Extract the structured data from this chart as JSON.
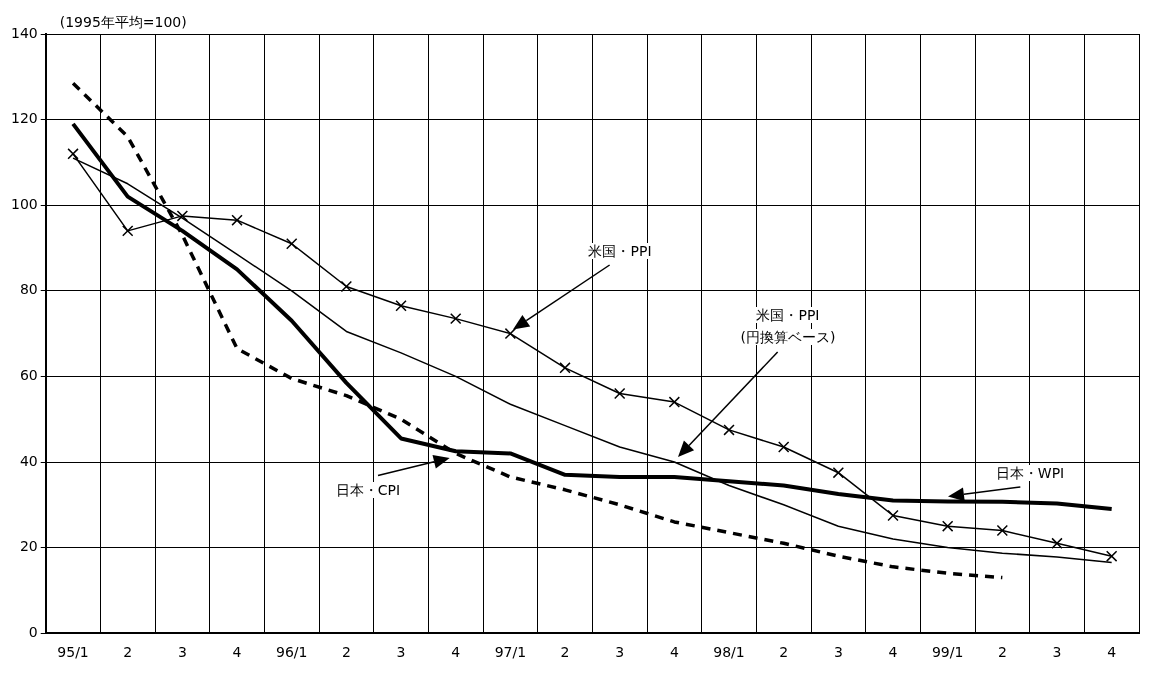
{
  "chart_data": {
    "type": "line",
    "ylabel": "(1995年平均=100)",
    "categories": [
      "95/1",
      "2",
      "3",
      "4",
      "96/1",
      "2",
      "3",
      "4",
      "97/1",
      "2",
      "3",
      "4",
      "98/1",
      "2",
      "3",
      "4",
      "99/1",
      "2",
      "3",
      "4"
    ],
    "series": [
      {
        "color": "#000000",
        "marker": "cross",
        "line_style": "solid",
        "values": [
          112,
          94,
          97.5,
          96.5,
          91,
          81,
          76.5,
          73.5,
          70,
          62,
          56,
          54,
          47.5,
          43.5,
          37.5,
          27.5,
          25,
          24,
          21,
          18
        ]
      },
      {
        "color": "#000000",
        "marker": "none",
        "line_style": "solid",
        "values": [
          111,
          105,
          97,
          88.5,
          80,
          70.5,
          65.5,
          60,
          53.5,
          48.5,
          43.5,
          40,
          34.5,
          30,
          25,
          22,
          20,
          18.7,
          17.8,
          16.5
        ]
      },
      {
        "color": "#000000",
        "marker": "none",
        "line_style": "solid",
        "values": [
          119,
          102,
          94,
          85,
          73,
          58.5,
          45.5,
          42.5,
          42,
          37,
          36.5,
          36.5,
          35.5,
          34.5,
          32.5,
          31,
          30.8,
          30.7,
          30.3,
          29
        ]
      },
      {
        "color": "#000000",
        "marker": "none",
        "line_style": "dashed",
        "values": [
          128.5,
          116,
          93,
          66.5,
          59.5,
          55.5,
          50,
          42,
          36.5,
          33.5,
          30,
          26,
          23.5,
          21,
          18,
          15.5,
          14,
          13,
          null,
          null
        ]
      }
    ],
    "annotations": [
      "米国・PPI",
      "米国・PPI (円換算ベース)",
      "日本・WPI",
      "日本・CPI"
    ],
    "ylim": [
      0,
      140
    ],
    "yticks": [
      0,
      20,
      40,
      60,
      80,
      100,
      120,
      140
    ],
    "grid": true
  }
}
